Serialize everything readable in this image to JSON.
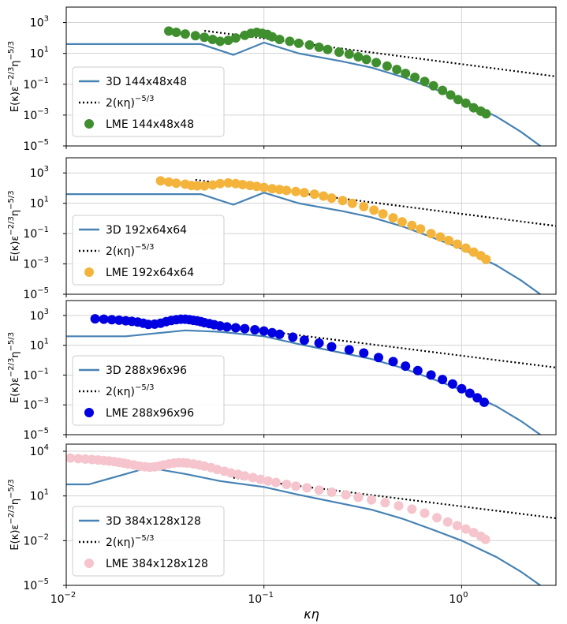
{
  "colors": {
    "line_3d": "#4682b4",
    "reference": "#000000",
    "grid": "#d3d3d3",
    "frame": "#000000"
  },
  "shared": {
    "xlabel": "κη",
    "ylabel": "E(κ)ε^{-2/3}η^{-5/3}",
    "xlim": [
      0.01,
      3.0
    ],
    "x_ticks": [
      0.01,
      0.1,
      1.0
    ],
    "x_tick_labels": [
      {
        "base": "10",
        "exp": "−2"
      },
      {
        "base": "10",
        "exp": "−1"
      },
      {
        "base": "10",
        "exp": "0"
      }
    ],
    "x_tick_labels_bottom_only": true
  },
  "chart_data": [
    {
      "type": "line",
      "xscale": "log",
      "yscale": "log",
      "ylim": [
        1e-05,
        10000
      ],
      "y_ticks": [
        1e-05,
        0.001,
        0.1,
        10,
        1000
      ],
      "y_tick_labels": [
        {
          "base": "10",
          "exp": "−5"
        },
        {
          "base": "10",
          "exp": "−3"
        },
        {
          "base": "10",
          "exp": "−1"
        },
        {
          "base": "10",
          "exp": "1"
        },
        {
          "base": "10",
          "exp": "3"
        }
      ],
      "legend": {
        "position": "lower-left",
        "entries": [
          {
            "label": "3D 144x48x48",
            "marker": "line"
          },
          {
            "label_prefix": "2(κη)",
            "label_exp": "−5/3",
            "marker": "dotted"
          },
          {
            "label": "LME 144x48x48",
            "marker": "circle"
          }
        ]
      },
      "lme_color": "#3f8f2f",
      "series": [
        {
          "name": "3D 144x48x48",
          "style": "line",
          "x": [
            0.01,
            0.048,
            0.07,
            0.1,
            0.15,
            0.25,
            0.35,
            0.5,
            0.7,
            1.0,
            1.5,
            2.0,
            2.5,
            2.8
          ],
          "y": [
            40,
            40,
            8,
            50,
            10,
            3,
            1.2,
            0.3,
            0.06,
            0.01,
            0.0008,
            8e-05,
            1e-05,
            3e-06
          ]
        },
        {
          "name": "2(κη)^(−5/3)",
          "style": "dotted",
          "x": [
            0.05,
            0.1,
            0.3,
            1.0,
            3.0
          ],
          "y": [
            294,
            92.8,
            14.9,
            2.0,
            0.32
          ]
        },
        {
          "name": "LME 144x48x48",
          "style": "scatter",
          "x": [
            0.033,
            0.036,
            0.04,
            0.045,
            0.05,
            0.055,
            0.06,
            0.066,
            0.072,
            0.08,
            0.086,
            0.092,
            0.098,
            0.104,
            0.11,
            0.12,
            0.135,
            0.15,
            0.17,
            0.19,
            0.21,
            0.24,
            0.27,
            0.3,
            0.33,
            0.37,
            0.42,
            0.47,
            0.52,
            0.58,
            0.65,
            0.72,
            0.8,
            0.88,
            0.96,
            1.05,
            1.15,
            1.25,
            1.33
          ],
          "y": [
            280,
            230,
            180,
            140,
            110,
            80,
            60,
            70,
            100,
            150,
            200,
            230,
            200,
            170,
            120,
            80,
            60,
            45,
            35,
            25,
            18,
            12,
            9,
            6,
            4,
            2.5,
            1.5,
            0.9,
            0.5,
            0.28,
            0.15,
            0.08,
            0.04,
            0.02,
            0.01,
            0.006,
            0.003,
            0.0018,
            0.0012
          ]
        }
      ]
    },
    {
      "type": "line",
      "xscale": "log",
      "yscale": "log",
      "ylim": [
        1e-05,
        10000
      ],
      "y_ticks": [
        1e-05,
        0.001,
        0.1,
        10,
        1000
      ],
      "y_tick_labels": [
        {
          "base": "10",
          "exp": "−5"
        },
        {
          "base": "10",
          "exp": "−3"
        },
        {
          "base": "10",
          "exp": "−1"
        },
        {
          "base": "10",
          "exp": "1"
        },
        {
          "base": "10",
          "exp": "3"
        }
      ],
      "legend": {
        "position": "lower-left",
        "entries": [
          {
            "label": "3D 192x64x64",
            "marker": "line"
          },
          {
            "label_prefix": "2(κη)",
            "label_exp": "−5/3",
            "marker": "dotted"
          },
          {
            "label": "LME 192x64x64",
            "marker": "circle"
          }
        ]
      },
      "lme_color": "#f4b43c",
      "series": [
        {
          "name": "3D 192x64x64",
          "style": "line",
          "x": [
            0.01,
            0.048,
            0.07,
            0.1,
            0.15,
            0.25,
            0.35,
            0.5,
            0.7,
            1.0,
            1.5,
            2.0,
            2.5,
            2.8
          ],
          "y": [
            40,
            40,
            8,
            50,
            10,
            3,
            1.2,
            0.3,
            0.06,
            0.01,
            0.0008,
            8e-05,
            1e-05,
            3e-06
          ]
        },
        {
          "name": "2(κη)^(−5/3)",
          "style": "dotted",
          "x": [
            0.045,
            0.1,
            0.3,
            1.0,
            3.0
          ],
          "y": [
            350,
            92.8,
            14.9,
            2.0,
            0.32
          ]
        },
        {
          "name": "LME 192x64x64",
          "style": "scatter",
          "x": [
            0.03,
            0.033,
            0.036,
            0.04,
            0.043,
            0.046,
            0.05,
            0.055,
            0.06,
            0.066,
            0.072,
            0.078,
            0.085,
            0.092,
            0.1,
            0.11,
            0.12,
            0.13,
            0.145,
            0.16,
            0.18,
            0.2,
            0.22,
            0.25,
            0.28,
            0.32,
            0.36,
            0.4,
            0.45,
            0.5,
            0.56,
            0.62,
            0.7,
            0.78,
            0.86,
            0.95,
            1.05,
            1.15,
            1.25,
            1.33
          ],
          "y": [
            300,
            250,
            210,
            180,
            150,
            140,
            140,
            160,
            200,
            220,
            200,
            170,
            150,
            130,
            110,
            90,
            80,
            70,
            60,
            50,
            40,
            30,
            22,
            15,
            10,
            6,
            3.5,
            2,
            1.1,
            0.6,
            0.35,
            0.2,
            0.1,
            0.06,
            0.035,
            0.02,
            0.011,
            0.006,
            0.0035,
            0.002
          ]
        }
      ]
    },
    {
      "type": "line",
      "xscale": "log",
      "yscale": "log",
      "ylim": [
        1e-05,
        10000
      ],
      "y_ticks": [
        1e-05,
        0.001,
        0.1,
        10,
        1000
      ],
      "y_tick_labels": [
        {
          "base": "10",
          "exp": "−5"
        },
        {
          "base": "10",
          "exp": "−3"
        },
        {
          "base": "10",
          "exp": "−1"
        },
        {
          "base": "10",
          "exp": "1"
        },
        {
          "base": "10",
          "exp": "3"
        }
      ],
      "legend": {
        "position": "lower-left",
        "entries": [
          {
            "label": "3D 288x96x96",
            "marker": "line"
          },
          {
            "label_prefix": "2(κη)",
            "label_exp": "−5/3",
            "marker": "dotted"
          },
          {
            "label": "LME 288x96x96",
            "marker": "circle"
          }
        ]
      },
      "lme_color": "#0000e0",
      "series": [
        {
          "name": "3D 288x96x96",
          "style": "line",
          "x": [
            0.01,
            0.02,
            0.04,
            0.06,
            0.1,
            0.15,
            0.25,
            0.35,
            0.5,
            0.7,
            1.0,
            1.5,
            2.0,
            2.5,
            2.8
          ],
          "y": [
            40,
            40,
            100,
            80,
            40,
            12,
            3,
            1.2,
            0.3,
            0.06,
            0.01,
            0.0008,
            8e-05,
            1e-05,
            3e-06
          ]
        },
        {
          "name": "2(κη)^(−5/3)",
          "style": "dotted",
          "x": [
            0.1,
            0.3,
            1.0,
            3.0
          ],
          "y": [
            92.8,
            14.9,
            2.0,
            0.32
          ]
        },
        {
          "name": "LME 288x96x96",
          "style": "scatter",
          "x": [
            0.014,
            0.0155,
            0.017,
            0.0185,
            0.02,
            0.0215,
            0.023,
            0.0245,
            0.026,
            0.028,
            0.03,
            0.032,
            0.034,
            0.036,
            0.038,
            0.04,
            0.042,
            0.044,
            0.046,
            0.048,
            0.05,
            0.053,
            0.056,
            0.06,
            0.065,
            0.072,
            0.08,
            0.09,
            0.1,
            0.11,
            0.12,
            0.14,
            0.16,
            0.19,
            0.22,
            0.27,
            0.32,
            0.38,
            0.45,
            0.52,
            0.6,
            0.7,
            0.8,
            0.9,
            1.0,
            1.1,
            1.2,
            1.3
          ],
          "y": [
            600,
            560,
            520,
            480,
            440,
            400,
            360,
            300,
            250,
            260,
            300,
            380,
            460,
            520,
            560,
            560,
            520,
            470,
            430,
            380,
            330,
            280,
            240,
            200,
            170,
            150,
            130,
            110,
            90,
            70,
            55,
            35,
            22,
            14,
            8,
            5,
            3,
            1.5,
            0.8,
            0.4,
            0.2,
            0.1,
            0.05,
            0.025,
            0.012,
            0.006,
            0.003,
            0.0015
          ]
        }
      ]
    },
    {
      "type": "line",
      "xscale": "log",
      "yscale": "log",
      "ylim": [
        1e-05,
        30000
      ],
      "y_ticks": [
        1e-05,
        0.01,
        10,
        10000
      ],
      "y_tick_labels": [
        {
          "base": "10",
          "exp": "−5"
        },
        {
          "base": "10",
          "exp": "−2"
        },
        {
          "base": "10",
          "exp": "1"
        },
        {
          "base": "10",
          "exp": "4"
        }
      ],
      "legend": {
        "position": "lower-left",
        "entries": [
          {
            "label": "3D 384x128x128",
            "marker": "line"
          },
          {
            "label_prefix": "2(κη)",
            "label_exp": "−5/3",
            "marker": "dotted"
          },
          {
            "label": "LME 384x128x128",
            "marker": "circle"
          }
        ]
      },
      "lme_color": "#f5c4cc",
      "series": [
        {
          "name": "3D 384x128x128",
          "style": "line",
          "x": [
            0.01,
            0.013,
            0.02,
            0.026,
            0.04,
            0.06,
            0.1,
            0.15,
            0.25,
            0.35,
            0.5,
            0.7,
            1.0,
            1.5,
            2.0,
            2.5,
            2.8
          ],
          "y": [
            60,
            60,
            300,
            800,
            300,
            100,
            40,
            12,
            3,
            1.2,
            0.3,
            0.06,
            0.01,
            0.0008,
            8e-05,
            1e-05,
            3e-06
          ]
        },
        {
          "name": "2(κη)^(−5/3)",
          "style": "dotted",
          "x": [
            0.07,
            0.1,
            0.3,
            1.0,
            3.0
          ],
          "y": [
            168,
            92.8,
            14.9,
            2.0,
            0.32
          ]
        },
        {
          "name": "LME 384x128x128",
          "style": "scatter",
          "x": [
            0.0105,
            0.0115,
            0.0125,
            0.0135,
            0.0145,
            0.0155,
            0.0165,
            0.0175,
            0.0185,
            0.0195,
            0.0205,
            0.022,
            0.0235,
            0.025,
            0.0265,
            0.028,
            0.0295,
            0.031,
            0.033,
            0.035,
            0.037,
            0.039,
            0.041,
            0.044,
            0.047,
            0.05,
            0.054,
            0.058,
            0.063,
            0.068,
            0.074,
            0.08,
            0.088,
            0.096,
            0.105,
            0.115,
            0.13,
            0.145,
            0.165,
            0.19,
            0.22,
            0.26,
            0.3,
            0.35,
            0.41,
            0.48,
            0.56,
            0.65,
            0.75,
            0.85,
            0.95,
            1.05,
            1.15,
            1.25,
            1.32
          ],
          "y": [
            3500,
            3200,
            3000,
            2800,
            2600,
            2400,
            2200,
            2000,
            1800,
            1600,
            1400,
            1200,
            1000,
            900,
            850,
            900,
            1000,
            1200,
            1400,
            1600,
            1700,
            1700,
            1600,
            1400,
            1200,
            1000,
            800,
            600,
            450,
            350,
            280,
            220,
            170,
            130,
            100,
            80,
            60,
            45,
            35,
            25,
            18,
            12,
            8,
            5.5,
            3.5,
            2.2,
            1.3,
            0.7,
            0.35,
            0.18,
            0.1,
            0.06,
            0.035,
            0.02,
            0.012
          ]
        }
      ]
    }
  ]
}
